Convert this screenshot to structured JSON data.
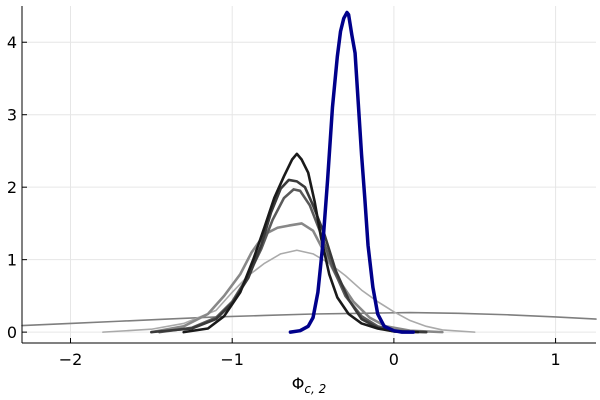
{
  "chart_data": {
    "type": "line",
    "title": "",
    "xlabel": "Φ",
    "xlabel_sub": "c, 2",
    "ylabel": "",
    "xlim": [
      -2.3,
      1.25
    ],
    "ylim": [
      -0.15,
      4.5
    ],
    "xticks": [
      -2,
      -1,
      0,
      1
    ],
    "xtick_labels": [
      "−2",
      "−1",
      "0",
      "1"
    ],
    "yticks": [
      0,
      1,
      2,
      3,
      4
    ],
    "ytick_labels": [
      "0",
      "1",
      "2",
      "3",
      "4"
    ],
    "grid": true,
    "legend": "none",
    "series": [
      {
        "color": "#7f7f7f",
        "x": [
          -2.3,
          -2.0,
          -1.7,
          -1.4,
          -1.1,
          -0.8,
          -0.5,
          -0.2,
          0.1,
          0.4,
          0.7,
          1.0,
          1.25
        ],
        "y": [
          0.09,
          0.12,
          0.15,
          0.18,
          0.21,
          0.23,
          0.25,
          0.26,
          0.27,
          0.26,
          0.24,
          0.21,
          0.18
        ]
      },
      {
        "color": "#aaaaaa",
        "x": [
          -1.8,
          -1.5,
          -1.3,
          -1.1,
          -1.0,
          -0.9,
          -0.8,
          -0.7,
          -0.6,
          -0.5,
          -0.4,
          -0.3,
          -0.2,
          -0.1,
          0.0,
          0.1,
          0.2,
          0.3,
          0.5
        ],
        "y": [
          0.0,
          0.04,
          0.12,
          0.3,
          0.55,
          0.78,
          0.95,
          1.08,
          1.13,
          1.08,
          0.95,
          0.78,
          0.58,
          0.42,
          0.28,
          0.16,
          0.08,
          0.03,
          0.0
        ]
      },
      {
        "color": "#888888",
        "x": [
          -1.5,
          -1.3,
          -1.15,
          -1.05,
          -0.95,
          -0.88,
          -0.8,
          -0.72,
          -0.65,
          -0.57,
          -0.5,
          -0.43,
          -0.35,
          -0.25,
          -0.15,
          -0.05,
          0.1,
          0.3
        ],
        "y": [
          0.0,
          0.08,
          0.25,
          0.5,
          0.8,
          1.1,
          1.35,
          1.44,
          1.47,
          1.5,
          1.4,
          1.1,
          0.75,
          0.42,
          0.2,
          0.08,
          0.02,
          0.0
        ]
      },
      {
        "color": "#5a5a5a",
        "x": [
          -1.45,
          -1.25,
          -1.1,
          -1.0,
          -0.9,
          -0.82,
          -0.75,
          -0.68,
          -0.62,
          -0.58,
          -0.52,
          -0.45,
          -0.38,
          -0.3,
          -0.2,
          -0.1,
          0.0,
          0.2
        ],
        "y": [
          0.0,
          0.06,
          0.2,
          0.42,
          0.78,
          1.15,
          1.55,
          1.85,
          1.97,
          1.95,
          1.75,
          1.35,
          0.9,
          0.5,
          0.22,
          0.08,
          0.02,
          0.0
        ]
      },
      {
        "color": "#3a3a3a",
        "x": [
          -1.5,
          -1.25,
          -1.1,
          -1.0,
          -0.9,
          -0.82,
          -0.76,
          -0.7,
          -0.65,
          -0.6,
          -0.55,
          -0.5,
          -0.43,
          -0.36,
          -0.28,
          -0.2,
          -0.1,
          0.0,
          0.2
        ],
        "y": [
          0.0,
          0.05,
          0.18,
          0.4,
          0.75,
          1.2,
          1.65,
          1.98,
          2.1,
          2.08,
          2.0,
          1.75,
          1.35,
          0.85,
          0.45,
          0.18,
          0.06,
          0.01,
          0.0
        ]
      },
      {
        "color": "#1a1a1a",
        "x": [
          -1.3,
          -1.15,
          -1.05,
          -0.95,
          -0.87,
          -0.8,
          -0.74,
          -0.68,
          -0.63,
          -0.6,
          -0.57,
          -0.53,
          -0.49,
          -0.45,
          -0.4,
          -0.35,
          -0.28,
          -0.2,
          -0.1,
          0.0,
          0.15
        ],
        "y": [
          0.0,
          0.05,
          0.22,
          0.55,
          1.0,
          1.45,
          1.85,
          2.15,
          2.38,
          2.46,
          2.38,
          2.2,
          1.8,
          1.3,
          0.8,
          0.48,
          0.25,
          0.12,
          0.05,
          0.01,
          0.0
        ]
      },
      {
        "color": "#00008b",
        "x": [
          -0.64,
          -0.58,
          -0.53,
          -0.5,
          -0.47,
          -0.44,
          -0.41,
          -0.38,
          -0.35,
          -0.33,
          -0.31,
          -0.29,
          -0.28,
          -0.26,
          -0.24,
          -0.22,
          -0.2,
          -0.18,
          -0.16,
          -0.13,
          -0.1,
          -0.06,
          0.0,
          0.05,
          0.12
        ],
        "y": [
          0.0,
          0.02,
          0.08,
          0.2,
          0.55,
          1.2,
          2.1,
          3.1,
          3.8,
          4.15,
          4.33,
          4.41,
          4.38,
          4.1,
          3.85,
          3.15,
          2.45,
          1.85,
          1.2,
          0.62,
          0.25,
          0.08,
          0.02,
          0.0,
          0.0
        ]
      }
    ]
  }
}
